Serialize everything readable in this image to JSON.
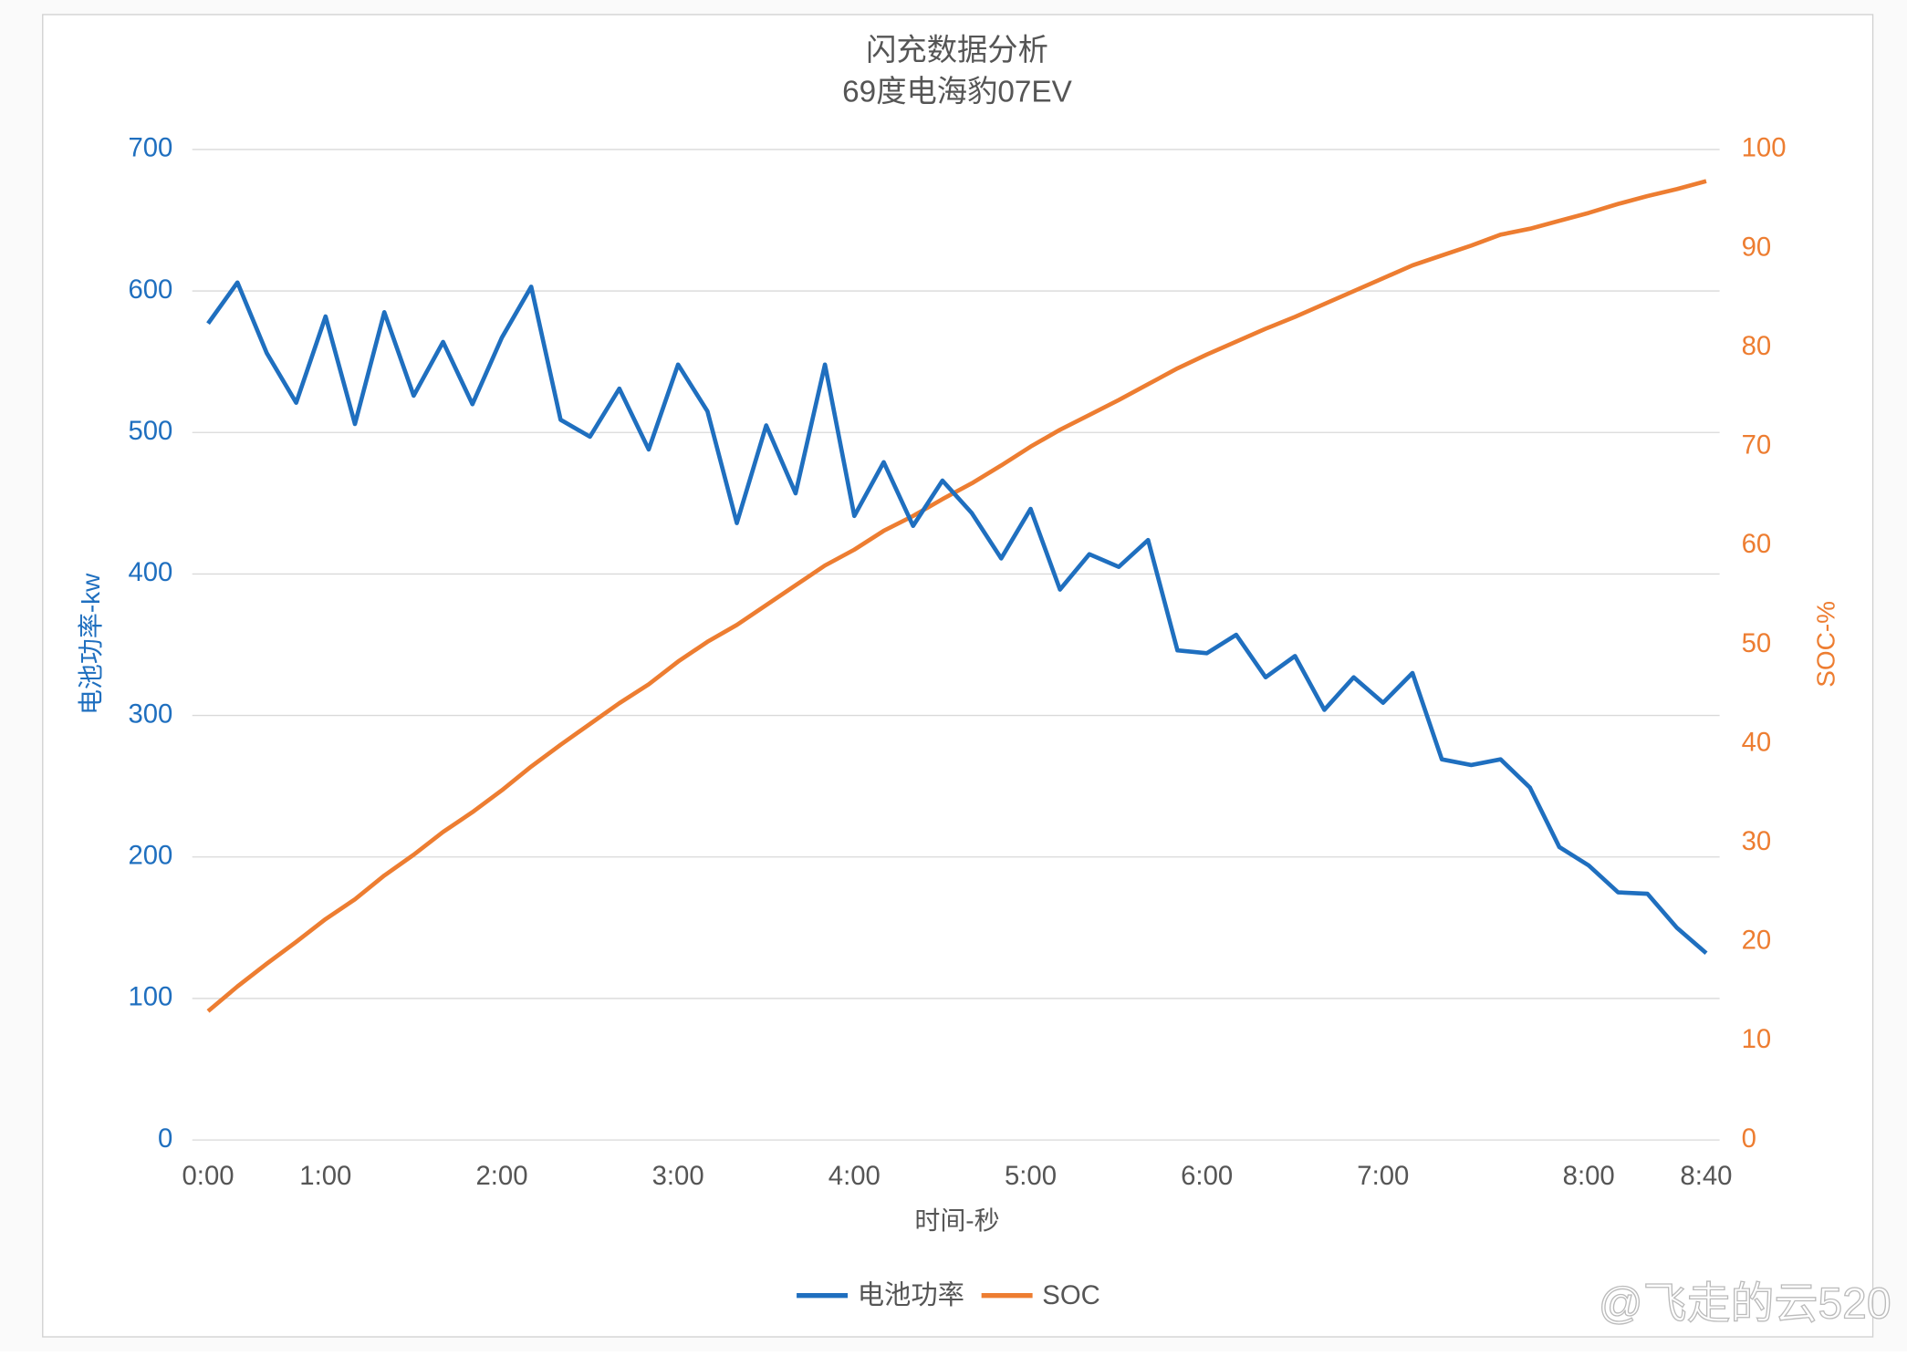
{
  "chart_data": {
    "type": "line",
    "title": "闪充数据分析",
    "subtitle": "69度电海豹07EV",
    "x_label": "时间-秒",
    "y_label": "电池功率-kw",
    "y2_label": "SOC-%",
    "watermark": "@飞走的云520",
    "categories": [
      "0:00",
      null,
      null,
      null,
      "1:00",
      null,
      null,
      null,
      null,
      null,
      "2:00",
      null,
      null,
      null,
      null,
      null,
      "3:00",
      null,
      null,
      null,
      null,
      null,
      "4:00",
      null,
      null,
      null,
      null,
      null,
      "5:00",
      null,
      null,
      null,
      null,
      null,
      "6:00",
      null,
      null,
      null,
      null,
      null,
      "7:00",
      null,
      null,
      null,
      null,
      null,
      null,
      "8:00",
      null,
      null,
      null,
      "8:40"
    ],
    "series": [
      {
        "name": "电池功率",
        "color": "#1f6fbf",
        "values": [
          577,
          606,
          556,
          521,
          582,
          506,
          585,
          526,
          564,
          520,
          567,
          603,
          509,
          497,
          531,
          488,
          548,
          515,
          436,
          505,
          457,
          548,
          441,
          479,
          434,
          466,
          443,
          411,
          446,
          389,
          414,
          405,
          424,
          346,
          344,
          357,
          327,
          342,
          304,
          327,
          309,
          330,
          269,
          265,
          269,
          249,
          207,
          194,
          175,
          174,
          150,
          132
        ]
      },
      {
        "name": "SOC",
        "color": "#ed7d31",
        "axis": "y2",
        "values": [
          13,
          15.5,
          17.8,
          20,
          22.3,
          24.3,
          26.7,
          28.8,
          31.1,
          33.1,
          35.3,
          37.7,
          39.9,
          42,
          44.1,
          46,
          48.3,
          50.3,
          52,
          54,
          56,
          58,
          59.6,
          61.5,
          63,
          64.7,
          66.3,
          68.1,
          70,
          71.7,
          73.2,
          74.7,
          76.3,
          77.9,
          79.3,
          80.6,
          81.9,
          83.1,
          84.4,
          85.7,
          87,
          88.3,
          89.3,
          90.3,
          91.4,
          92,
          92.8,
          93.6,
          94.5,
          95.3,
          96,
          96.8
        ]
      }
    ],
    "ylim": [
      0,
      700
    ],
    "yticks": [
      0,
      100,
      200,
      300,
      400,
      500,
      600,
      700
    ],
    "y2lim": [
      0,
      100
    ],
    "y2ticks": [
      0,
      10,
      20,
      30,
      40,
      50,
      60,
      70,
      80,
      90,
      100
    ],
    "grid": true,
    "legend": "bottom"
  }
}
